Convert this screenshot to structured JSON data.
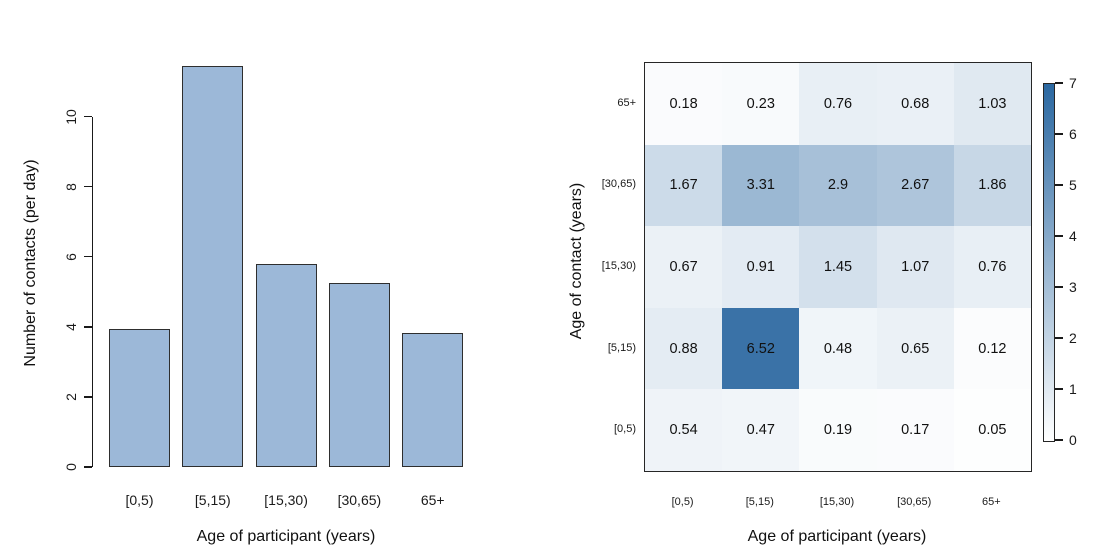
{
  "chart_data": [
    {
      "type": "bar",
      "panel": "left",
      "categories": [
        "[0,5)",
        "[5,15)",
        "[15,30)",
        "[30,65)",
        "65+"
      ],
      "values": [
        3.94,
        11.44,
        5.78,
        5.24,
        3.82
      ],
      "xlabel": "Age of participant (years)",
      "ylabel": "Number of contacts (per day)",
      "yticks": [
        0,
        2,
        4,
        6,
        8,
        10
      ],
      "ylim": [
        0,
        11.44
      ],
      "grid": false,
      "legend": "none",
      "bar_fill": "#9CB8D8",
      "bar_border": "#2e2e2e"
    },
    {
      "type": "heatmap",
      "panel": "right",
      "x_categories": [
        "[0,5)",
        "[5,15)",
        "[15,30)",
        "[30,65)",
        "65+"
      ],
      "rows_top_to_bottom": [
        {
          "contact_age": "65+",
          "values": [
            0.18,
            0.23,
            0.76,
            0.68,
            1.03
          ]
        },
        {
          "contact_age": "[30,65)",
          "values": [
            1.67,
            3.31,
            2.9,
            2.67,
            1.86
          ]
        },
        {
          "contact_age": "[15,30)",
          "values": [
            0.67,
            0.91,
            1.45,
            1.07,
            0.76
          ]
        },
        {
          "contact_age": "[5,15)",
          "values": [
            0.88,
            6.52,
            0.48,
            0.65,
            0.12
          ]
        },
        {
          "contact_age": "[0,5)",
          "values": [
            0.54,
            0.47,
            0.19,
            0.17,
            0.05
          ]
        }
      ],
      "xlabel": "Age of participant (years)",
      "ylabel": "Age of contact (years)",
      "colorbar": {
        "min": 0,
        "max": 7,
        "ticks": [
          0,
          1,
          2,
          3,
          4,
          5,
          6,
          7
        ],
        "low_color": "#FFFFFF",
        "high_color": "#2B68A1",
        "position": "right"
      }
    }
  ]
}
